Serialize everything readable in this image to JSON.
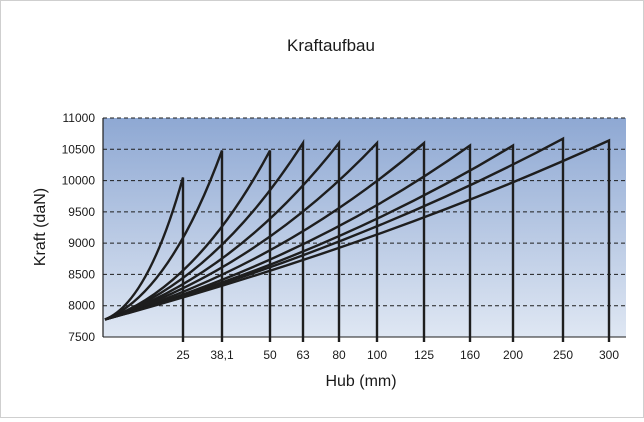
{
  "chart_data": {
    "type": "line",
    "title": "Kraftaufbau",
    "xlabel": "Hub (mm)",
    "ylabel": "Kraft (daN)",
    "ylim": [
      7500,
      11000
    ],
    "yticks": [
      7500,
      8000,
      8500,
      9000,
      9500,
      10000,
      10500,
      11000
    ],
    "grid": true,
    "legend": "none",
    "background_gradient": [
      "#dfe7f3",
      "#8ea8d3"
    ],
    "line_color": "#1e1e1e",
    "categories": [
      "25",
      "38,1",
      "50",
      "63",
      "80",
      "100",
      "125",
      "160",
      "200",
      "250",
      "300"
    ],
    "series": [
      {
        "stroke": 25,
        "start": 7780,
        "end": 10050
      },
      {
        "stroke": 38.1,
        "start": 7780,
        "end": 10480
      },
      {
        "stroke": 50,
        "start": 7780,
        "end": 10480
      },
      {
        "stroke": 63,
        "start": 7780,
        "end": 10600
      },
      {
        "stroke": 80,
        "start": 7780,
        "end": 10600
      },
      {
        "stroke": 100,
        "start": 7780,
        "end": 10600
      },
      {
        "stroke": 125,
        "start": 7780,
        "end": 10600
      },
      {
        "stroke": 160,
        "start": 7780,
        "end": 10560
      },
      {
        "stroke": 200,
        "start": 7780,
        "end": 10560
      },
      {
        "stroke": 250,
        "start": 7780,
        "end": 10670
      },
      {
        "stroke": 300,
        "start": 7780,
        "end": 10640
      }
    ]
  }
}
